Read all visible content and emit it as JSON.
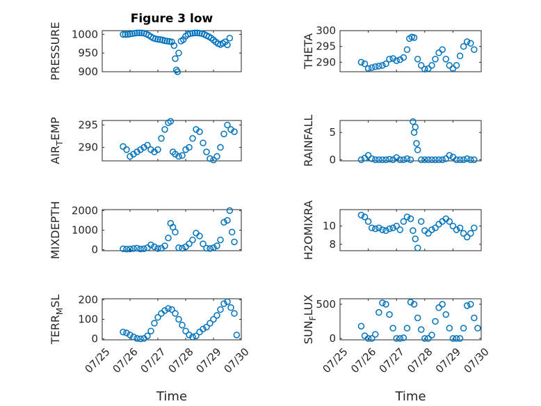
{
  "colors": {
    "marker": "#0072BD",
    "axis": "#262626",
    "grid": "#bdbdbd"
  },
  "chart_data": [
    {
      "type": "scatter",
      "title": "Figure 3 low",
      "ylabel": {
        "main": "PRESSURE",
        "sub": "",
        "rest": ""
      },
      "xlim": [
        "07/25",
        "07/30"
      ],
      "ylim": [
        900,
        1010
      ],
      "yticks": [
        900,
        950,
        1000
      ],
      "ytick_labels": [
        "900",
        "950",
        "1000"
      ],
      "xticks": [
        "07/25",
        "07/26",
        "07/27",
        "07/28",
        "07/29",
        "07/30"
      ],
      "xtick_labels": [
        "",
        "",
        "",
        "",
        "",
        ""
      ],
      "grid": true,
      "x": [
        "07/25 18:00",
        "07/25 20:00",
        "07/25 22:00",
        "07/26 00:00",
        "07/26 02:00",
        "07/26 04:00",
        "07/26 06:00",
        "07/26 08:00",
        "07/26 10:00",
        "07/26 12:00",
        "07/26 14:00",
        "07/26 16:00",
        "07/26 18:00",
        "07/26 20:00",
        "07/26 22:00",
        "07/27 00:00",
        "07/27 02:00",
        "07/27 04:00",
        "07/27 06:00",
        "07/27 08:00",
        "07/27 10:00",
        "07/27 12:00",
        "07/27 14:00",
        "07/27 15:00",
        "07/27 16:00",
        "07/27 17:00",
        "07/27 18:00",
        "07/27 20:00",
        "07/27 22:00",
        "07/28 00:00",
        "07/28 02:00",
        "07/28 04:00",
        "07/28 06:00",
        "07/28 08:00",
        "07/28 10:00",
        "07/28 12:00",
        "07/28 14:00",
        "07/28 16:00",
        "07/28 18:00",
        "07/28 20:00",
        "07/28 22:00",
        "07/29 00:00",
        "07/29 02:00",
        "07/29 04:00",
        "07/29 06:00",
        "07/29 08:00",
        "07/29 10:00",
        "07/29 12:00",
        "07/29 14:00"
      ],
      "y": [
        1000,
        1000,
        1000,
        1001,
        1002,
        1003,
        1004,
        1004,
        1004,
        1003,
        1001,
        998,
        994,
        990,
        988,
        987,
        986,
        985,
        983,
        982,
        981,
        980,
        970,
        935,
        905,
        900,
        950,
        982,
        986,
        995,
        1000,
        1002,
        1003,
        1004,
        1004,
        1003,
        1002,
        1000,
        997,
        994,
        990,
        985,
        980,
        975,
        973,
        976,
        980,
        972,
        990
      ]
    },
    {
      "type": "scatter",
      "title": "",
      "ylabel": {
        "main": "THETA",
        "sub": "",
        "rest": ""
      },
      "xlim": [
        "07/25",
        "07/30"
      ],
      "ylim": [
        287,
        300
      ],
      "yticks": [
        290,
        295,
        300
      ],
      "ytick_labels": [
        "290",
        "295",
        "300"
      ],
      "xticks": [
        "07/25",
        "07/26",
        "07/27",
        "07/28",
        "07/29",
        "07/30"
      ],
      "xtick_labels": [
        "",
        "",
        "",
        "",
        "",
        ""
      ],
      "grid": true,
      "x": [
        "07/25 18:00",
        "07/25 21:00",
        "07/26 00:00",
        "07/26 03:00",
        "07/26 06:00",
        "07/26 09:00",
        "07/26 12:00",
        "07/26 15:00",
        "07/26 18:00",
        "07/26 21:00",
        "07/27 00:00",
        "07/27 03:00",
        "07/27 06:00",
        "07/27 09:00",
        "07/27 11:00",
        "07/27 13:00",
        "07/27 15:00",
        "07/27 18:00",
        "07/27 21:00",
        "07/28 00:00",
        "07/28 03:00",
        "07/28 06:00",
        "07/28 09:00",
        "07/28 12:00",
        "07/28 15:00",
        "07/28 18:00",
        "07/28 21:00",
        "07/29 00:00",
        "07/29 03:00",
        "07/29 06:00",
        "07/29 09:00",
        "07/29 12:00",
        "07/29 15:00",
        "07/29 18:00"
      ],
      "y": [
        290,
        289.5,
        288,
        288.3,
        288.6,
        288.8,
        289,
        289.5,
        291,
        291.2,
        290.5,
        290.8,
        291.5,
        294,
        297.5,
        298,
        297.8,
        291,
        289,
        287.8,
        288,
        289,
        291,
        293,
        294,
        291,
        289,
        288,
        289,
        292,
        295,
        296.5,
        296,
        294
      ]
    },
    {
      "type": "scatter",
      "title": "",
      "ylabel": {
        "main": "AIR",
        "sub": "T",
        "rest": "EMP"
      },
      "xlim": [
        "07/25",
        "07/30"
      ],
      "ylim": [
        287,
        296
      ],
      "yticks": [
        290,
        295
      ],
      "ytick_labels": [
        "290",
        "295"
      ],
      "xticks": [
        "07/25",
        "07/26",
        "07/27",
        "07/28",
        "07/29",
        "07/30"
      ],
      "xtick_labels": [
        "",
        "",
        "",
        "",
        "",
        ""
      ],
      "grid": true,
      "x": [
        "07/25 18:00",
        "07/25 21:00",
        "07/26 00:00",
        "07/26 03:00",
        "07/26 06:00",
        "07/26 09:00",
        "07/26 12:00",
        "07/26 15:00",
        "07/26 18:00",
        "07/26 21:00",
        "07/27 00:00",
        "07/27 03:00",
        "07/27 06:00",
        "07/27 09:00",
        "07/27 11:00",
        "07/27 13:00",
        "07/27 15:00",
        "07/27 18:00",
        "07/27 21:00",
        "07/28 00:00",
        "07/28 03:00",
        "07/28 06:00",
        "07/28 09:00",
        "07/28 12:00",
        "07/28 15:00",
        "07/28 18:00",
        "07/28 21:00",
        "07/29 00:00",
        "07/29 03:00",
        "07/29 06:00",
        "07/29 09:00",
        "07/29 12:00",
        "07/29 15:00",
        "07/29 18:00"
      ],
      "y": [
        290.2,
        289.5,
        288,
        288.5,
        289,
        289.5,
        290,
        290.5,
        289.5,
        289,
        289.5,
        292,
        294,
        295.5,
        295.8,
        289,
        288.5,
        288,
        288.2,
        289.5,
        290,
        292,
        294,
        293.5,
        291,
        289,
        287.5,
        287.2,
        288,
        290,
        293,
        295,
        294,
        293.5
      ]
    },
    {
      "type": "scatter",
      "title": "",
      "ylabel": {
        "main": "RAINFALL",
        "sub": "",
        "rest": ""
      },
      "xlim": [
        "07/25",
        "07/30"
      ],
      "ylim": [
        -0.2,
        7.2
      ],
      "yticks": [
        0,
        5
      ],
      "ytick_labels": [
        "0",
        "5"
      ],
      "xticks": [
        "07/25",
        "07/26",
        "07/27",
        "07/28",
        "07/29",
        "07/30"
      ],
      "xtick_labels": [
        "",
        "",
        "",
        "",
        "",
        ""
      ],
      "grid": true,
      "x": [
        "07/25 18:00",
        "07/25 21:00",
        "07/26 00:00",
        "07/26 03:00",
        "07/26 06:00",
        "07/26 09:00",
        "07/26 12:00",
        "07/26 15:00",
        "07/26 18:00",
        "07/26 21:00",
        "07/27 00:00",
        "07/27 03:00",
        "07/27 06:00",
        "07/27 09:00",
        "07/27 12:00",
        "07/27 14:00",
        "07/27 15:00",
        "07/27 16:00",
        "07/27 17:00",
        "07/27 18:00",
        "07/27 21:00",
        "07/28 00:00",
        "07/28 03:00",
        "07/28 06:00",
        "07/28 09:00",
        "07/28 12:00",
        "07/28 15:00",
        "07/28 18:00",
        "07/28 21:00",
        "07/29 00:00",
        "07/29 03:00",
        "07/29 06:00",
        "07/29 09:00",
        "07/29 12:00",
        "07/29 15:00",
        "07/29 18:00"
      ],
      "y": [
        0,
        0.3,
        0.8,
        0.2,
        0,
        0,
        0,
        0,
        0.1,
        0,
        0.4,
        0,
        0,
        0.2,
        0,
        7,
        5,
        6,
        3,
        1.8,
        0,
        0,
        0,
        0,
        0,
        0,
        0,
        0.2,
        0.8,
        0.5,
        0,
        0,
        0,
        0.2,
        0,
        0
      ]
    },
    {
      "type": "scatter",
      "title": "",
      "ylabel": {
        "main": "MIXDEPTH",
        "sub": "",
        "rest": ""
      },
      "xlim": [
        "07/25",
        "07/30"
      ],
      "ylim": [
        -50,
        2050
      ],
      "yticks": [
        0,
        1000,
        2000
      ],
      "ytick_labels": [
        "0",
        "1000",
        "2000"
      ],
      "xticks": [
        "07/25",
        "07/26",
        "07/27",
        "07/28",
        "07/29",
        "07/30"
      ],
      "xtick_labels": [
        "",
        "",
        "",
        "",
        "",
        ""
      ],
      "grid": true,
      "x": [
        "07/25 18:00",
        "07/25 21:00",
        "07/26 00:00",
        "07/26 03:00",
        "07/26 06:00",
        "07/26 09:00",
        "07/26 12:00",
        "07/26 15:00",
        "07/26 18:00",
        "07/26 21:00",
        "07/27 00:00",
        "07/27 03:00",
        "07/27 06:00",
        "07/27 09:00",
        "07/27 11:00",
        "07/27 13:00",
        "07/27 15:00",
        "07/27 18:00",
        "07/27 21:00",
        "07/28 00:00",
        "07/28 03:00",
        "07/28 06:00",
        "07/28 09:00",
        "07/28 12:00",
        "07/28 15:00",
        "07/28 18:00",
        "07/28 21:00",
        "07/29 00:00",
        "07/29 03:00",
        "07/29 06:00",
        "07/29 09:00",
        "07/29 12:00",
        "07/29 14:00",
        "07/29 16:00",
        "07/29 18:00"
      ],
      "y": [
        50,
        30,
        40,
        60,
        80,
        40,
        50,
        100,
        250,
        150,
        60,
        80,
        200,
        600,
        1350,
        1150,
        900,
        100,
        80,
        150,
        300,
        500,
        850,
        700,
        300,
        80,
        60,
        100,
        200,
        500,
        1400,
        1500,
        2000,
        900,
        400
      ]
    },
    {
      "type": "scatter",
      "title": "",
      "ylabel": {
        "main": "H2OMIXRA",
        "sub": "",
        "rest": ""
      },
      "xlim": [
        "07/25",
        "07/30"
      ],
      "ylim": [
        7.3,
        11.8
      ],
      "yticks": [
        8,
        10
      ],
      "ytick_labels": [
        "8",
        "10"
      ],
      "xticks": [
        "07/25",
        "07/26",
        "07/27",
        "07/28",
        "07/29",
        "07/30"
      ],
      "xtick_labels": [
        "",
        "",
        "",
        "",
        "",
        ""
      ],
      "grid": true,
      "x": [
        "07/25 18:00",
        "07/25 21:00",
        "07/26 00:00",
        "07/26 03:00",
        "07/26 06:00",
        "07/26 09:00",
        "07/26 12:00",
        "07/26 15:00",
        "07/26 18:00",
        "07/26 21:00",
        "07/27 00:00",
        "07/27 03:00",
        "07/27 06:00",
        "07/27 09:00",
        "07/27 12:00",
        "07/27 14:00",
        "07/27 16:00",
        "07/27 18:00",
        "07/27 21:00",
        "07/28 00:00",
        "07/28 03:00",
        "07/28 06:00",
        "07/28 09:00",
        "07/28 12:00",
        "07/28 15:00",
        "07/28 18:00",
        "07/28 21:00",
        "07/29 00:00",
        "07/29 03:00",
        "07/29 06:00",
        "07/29 09:00",
        "07/29 12:00",
        "07/29 15:00",
        "07/29 18:00"
      ],
      "y": [
        11.2,
        11,
        10.5,
        9.8,
        9.7,
        9.8,
        9.6,
        9.5,
        9.7,
        9.8,
        10,
        9.6,
        10.5,
        11,
        10.8,
        9.5,
        8.6,
        7.6,
        10.5,
        9.5,
        9.2,
        9.6,
        9.8,
        10.2,
        10.5,
        10.8,
        10.5,
        10,
        9.6,
        9.8,
        9.2,
        8.8,
        9.2,
        9.8
      ]
    },
    {
      "type": "scatter",
      "title": "",
      "ylabel": {
        "main": "TERR",
        "sub": "M",
        "rest": "SL"
      },
      "xlim": [
        "07/25",
        "07/30"
      ],
      "ylim": [
        -5,
        205
      ],
      "yticks": [
        0,
        100,
        200
      ],
      "ytick_labels": [
        "0",
        "100",
        "200"
      ],
      "xticks": [
        "07/25",
        "07/26",
        "07/27",
        "07/28",
        "07/29",
        "07/30"
      ],
      "xtick_labels": [
        "07/25",
        "07/26",
        "07/27",
        "07/28",
        "07/29",
        "07/30"
      ],
      "xlabel": "Time",
      "grid": true,
      "x": [
        "07/25 18:00",
        "07/25 21:00",
        "07/26 00:00",
        "07/26 03:00",
        "07/26 06:00",
        "07/26 09:00",
        "07/26 12:00",
        "07/26 15:00",
        "07/26 18:00",
        "07/26 21:00",
        "07/27 00:00",
        "07/27 03:00",
        "07/27 06:00",
        "07/27 09:00",
        "07/27 12:00",
        "07/27 15:00",
        "07/27 18:00",
        "07/27 21:00",
        "07/28 00:00",
        "07/28 03:00",
        "07/28 06:00",
        "07/28 09:00",
        "07/28 12:00",
        "07/28 15:00",
        "07/28 18:00",
        "07/28 21:00",
        "07/29 00:00",
        "07/29 03:00",
        "07/29 06:00",
        "07/29 09:00",
        "07/29 12:00",
        "07/29 15:00",
        "07/29 18:00",
        "07/29 20:00"
      ],
      "y": [
        35,
        30,
        20,
        10,
        2,
        0,
        2,
        15,
        40,
        80,
        110,
        130,
        145,
        155,
        150,
        130,
        100,
        70,
        40,
        20,
        10,
        15,
        35,
        50,
        60,
        80,
        100,
        120,
        150,
        180,
        190,
        160,
        130,
        20
      ]
    },
    {
      "type": "scatter",
      "title": "",
      "ylabel": {
        "main": "SUN",
        "sub": "F",
        "rest": "LUX"
      },
      "xlim": [
        "07/25",
        "07/30"
      ],
      "ylim": [
        -20,
        580
      ],
      "yticks": [
        0,
        500
      ],
      "ytick_labels": [
        "0",
        "500"
      ],
      "xticks": [
        "07/25",
        "07/26",
        "07/27",
        "07/28",
        "07/29",
        "07/30"
      ],
      "xtick_labels": [
        "07/25",
        "07/26",
        "07/27",
        "07/28",
        "07/29",
        "07/30"
      ],
      "xlabel": "Time",
      "grid": true,
      "x": [
        "07/25 18:00",
        "07/25 21:00",
        "07/26 00:00",
        "07/26 03:00",
        "07/26 06:00",
        "07/26 09:00",
        "07/26 12:00",
        "07/26 15:00",
        "07/26 18:00",
        "07/26 21:00",
        "07/27 00:00",
        "07/27 03:00",
        "07/27 06:00",
        "07/27 09:00",
        "07/27 12:00",
        "07/27 15:00",
        "07/27 18:00",
        "07/27 21:00",
        "07/28 00:00",
        "07/28 03:00",
        "07/28 06:00",
        "07/28 09:00",
        "07/28 12:00",
        "07/28 15:00",
        "07/28 18:00",
        "07/28 21:00",
        "07/29 00:00",
        "07/29 03:00",
        "07/29 06:00",
        "07/29 09:00",
        "07/29 12:00",
        "07/29 15:00",
        "07/29 18:00",
        "07/29 21:00"
      ],
      "y": [
        180,
        40,
        0,
        0,
        60,
        380,
        520,
        500,
        350,
        150,
        0,
        0,
        10,
        150,
        530,
        500,
        300,
        130,
        0,
        0,
        50,
        250,
        450,
        500,
        350,
        150,
        0,
        0,
        0,
        150,
        480,
        500,
        300,
        150
      ]
    }
  ]
}
